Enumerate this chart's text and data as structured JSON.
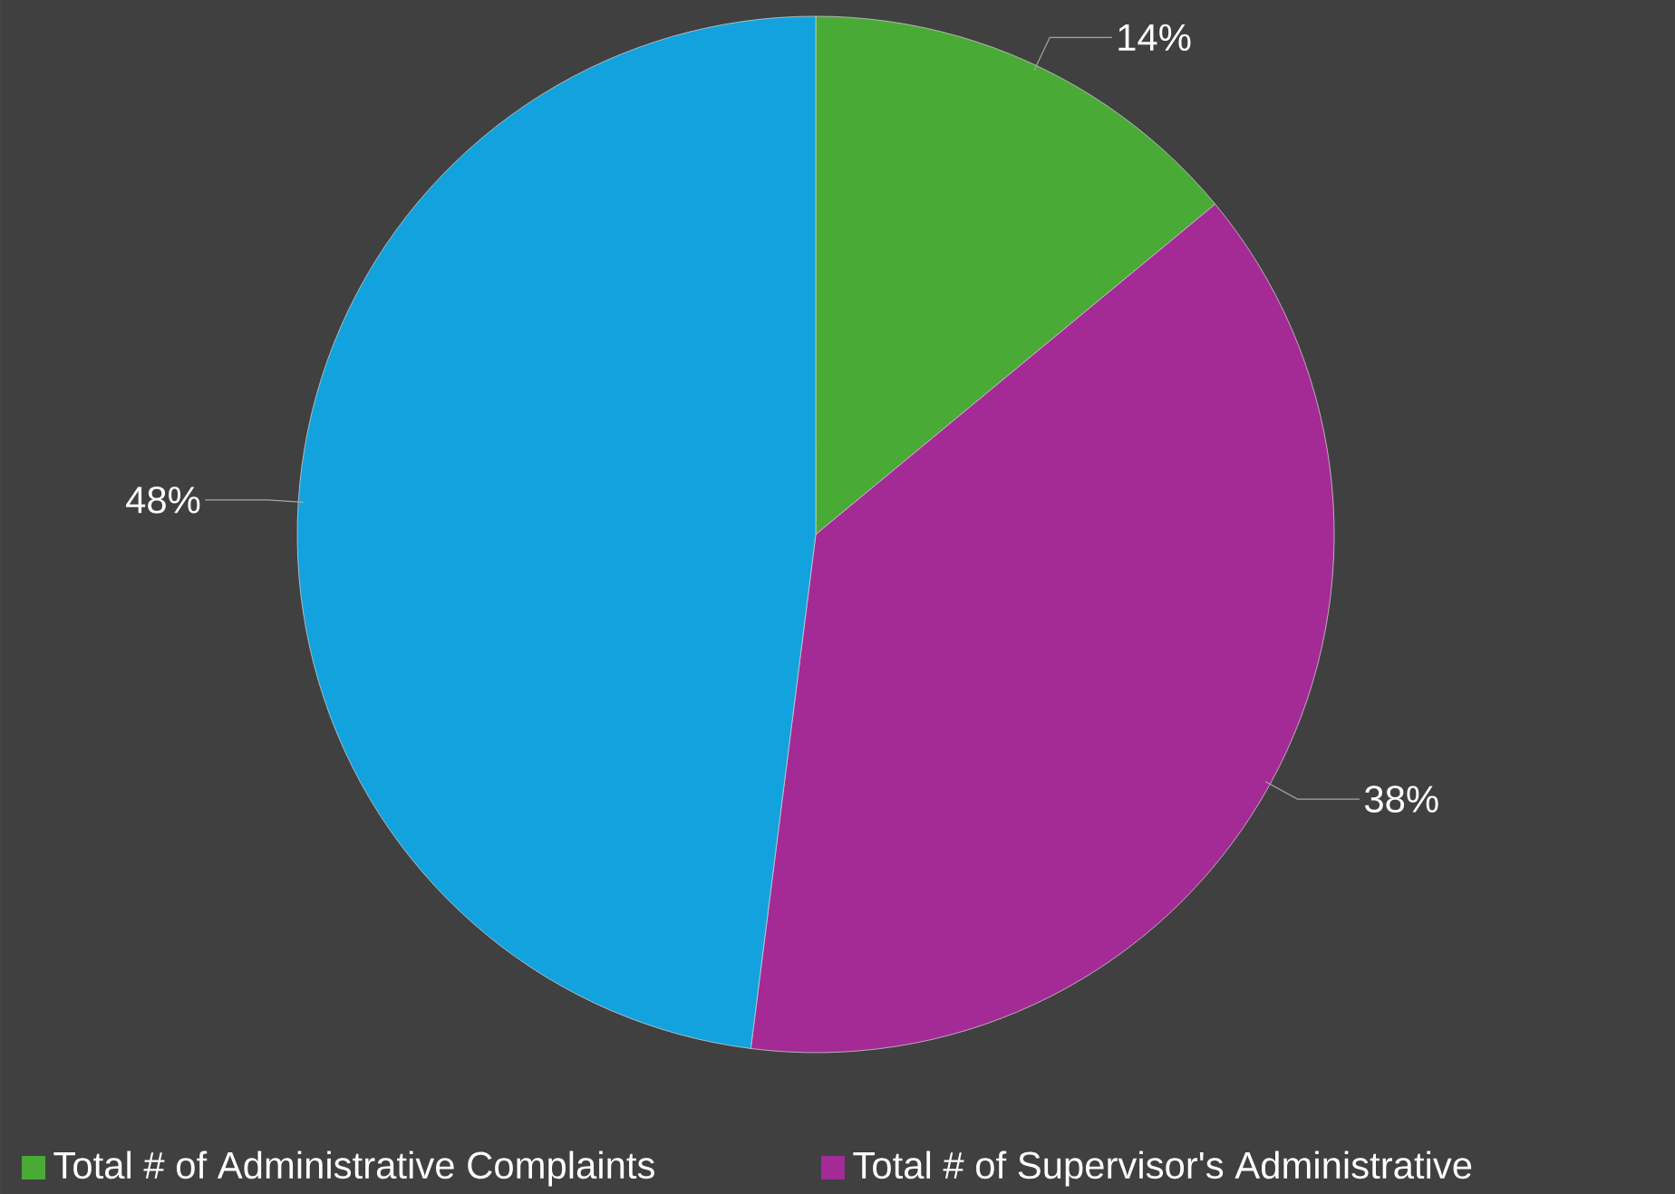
{
  "chart_data": {
    "type": "pie",
    "categories": [
      "Total # of Administrative Complaints",
      "Total # of Supervisor's Administrative",
      null
    ],
    "values": [
      14,
      38,
      48
    ],
    "colors": [
      "#4aaa36",
      "#a42a96",
      "#12a2de"
    ],
    "value_labels": [
      "14%",
      "38%",
      "48%"
    ],
    "legend": "bottom"
  }
}
